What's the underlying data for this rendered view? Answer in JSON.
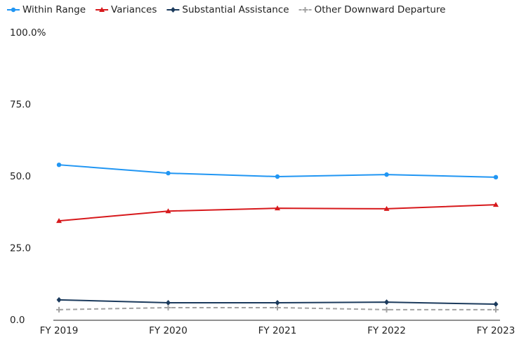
{
  "chart_data": {
    "type": "line",
    "categories": [
      "FY 2019",
      "FY 2020",
      "FY 2021",
      "FY 2022",
      "FY 2023"
    ],
    "series": [
      {
        "name": "Within Range",
        "color": "#2196f3",
        "marker": "circle",
        "values": [
          54.1,
          51.2,
          50.0,
          50.7,
          49.8
        ]
      },
      {
        "name": "Variances",
        "color": "#d7191c",
        "marker": "triangle",
        "values": [
          34.6,
          38.0,
          39.0,
          38.8,
          40.2
        ]
      },
      {
        "name": "Substantial Assistance",
        "color": "#1b3a5c",
        "marker": "diamond",
        "values": [
          7.1,
          6.1,
          6.1,
          6.3,
          5.6
        ]
      },
      {
        "name": "Other Downward Departure",
        "color": "#a3a3a3",
        "marker": "plus",
        "dashed": true,
        "values": [
          3.7,
          4.4,
          4.4,
          3.7,
          3.7
        ]
      }
    ],
    "ylim": [
      0,
      100
    ],
    "yticks": [
      {
        "value": 0,
        "label": "0.0"
      },
      {
        "value": 25,
        "label": "25.0"
      },
      {
        "value": 50,
        "label": "50.0"
      },
      {
        "value": 75,
        "label": "75.0"
      },
      {
        "value": 100,
        "label": "100.0%"
      }
    ],
    "grid": false,
    "legend": "top"
  }
}
